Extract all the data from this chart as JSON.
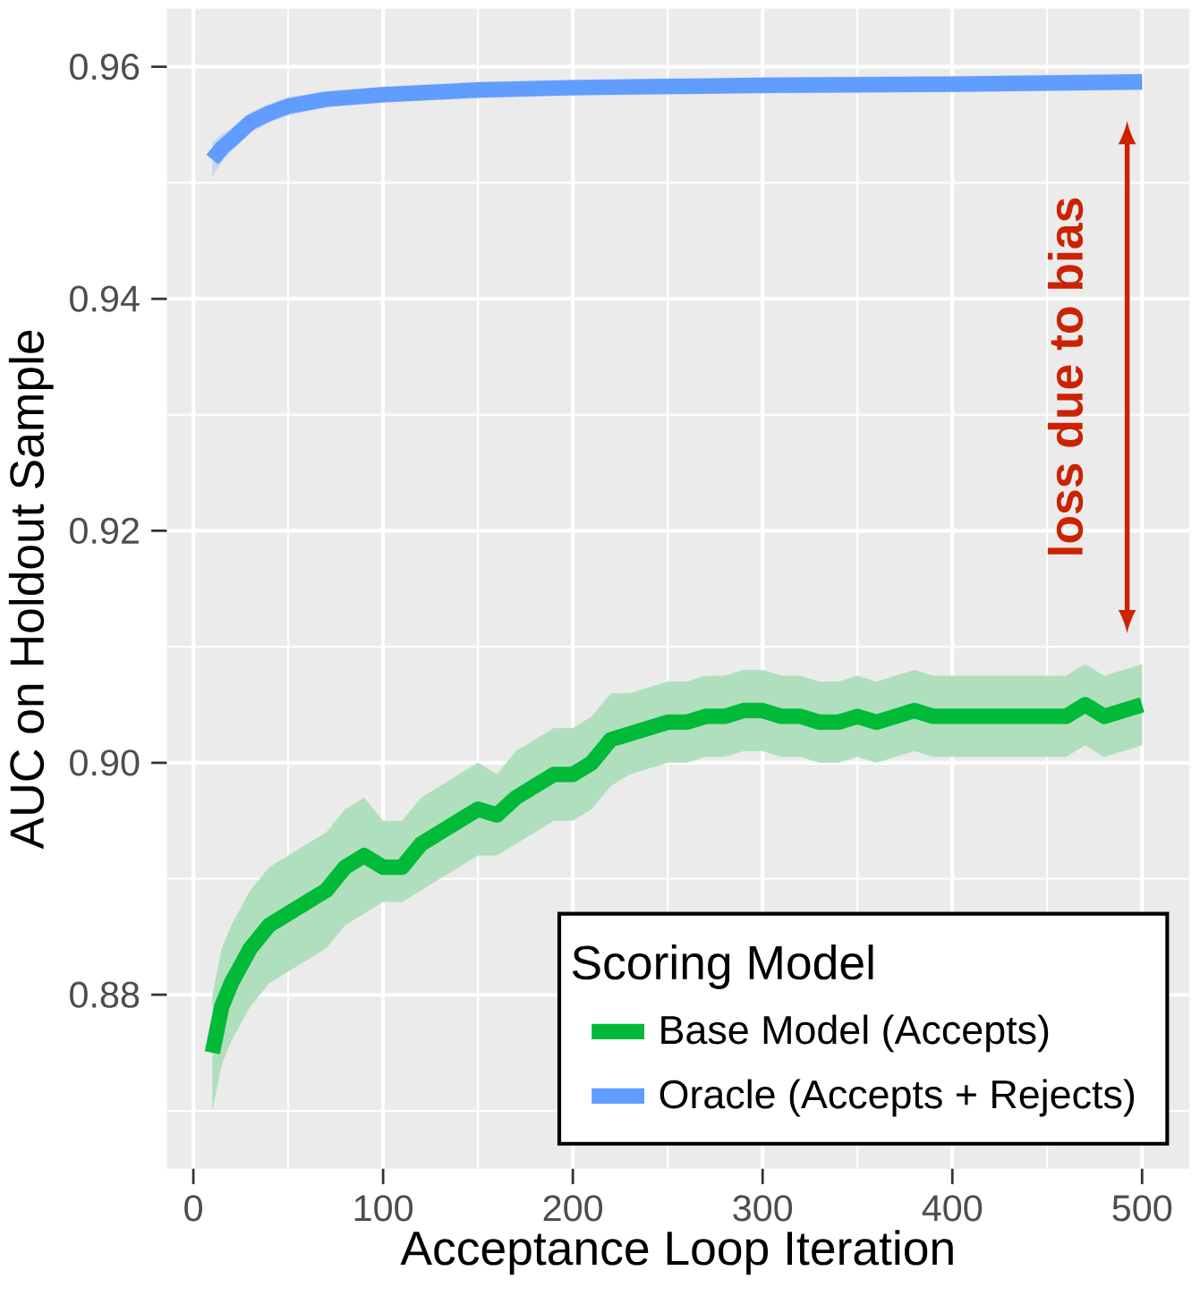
{
  "chart_data": {
    "type": "line",
    "xlabel": "Acceptance Loop Iteration",
    "ylabel": "AUC on Holdout Sample",
    "legend_title": "Scoring Model",
    "xlim": [
      -14,
      525
    ],
    "ylim": [
      0.865,
      0.965
    ],
    "xticks": [
      0,
      100,
      200,
      300,
      400,
      500
    ],
    "yticks": [
      0.88,
      {
        "value": 0.9,
        "label": "0.90"
      },
      0.92,
      0.94,
      0.96
    ],
    "grid": true,
    "legend": "bottom right",
    "marker": "none",
    "line_style": "solid",
    "annotations": [
      "loss due to bias"
    ],
    "series": [
      {
        "name": "Base Model (Accepts)",
        "color": "#00ba38",
        "x": [
          10,
          15,
          20,
          30,
          40,
          50,
          60,
          70,
          80,
          90,
          100,
          110,
          120,
          130,
          140,
          150,
          160,
          170,
          180,
          190,
          200,
          210,
          220,
          230,
          240,
          250,
          260,
          270,
          280,
          290,
          300,
          310,
          320,
          330,
          340,
          350,
          360,
          370,
          380,
          390,
          400,
          420,
          440,
          460,
          470,
          480,
          490,
          500
        ],
        "values": [
          0.875,
          0.879,
          0.881,
          0.884,
          0.886,
          0.887,
          0.888,
          0.889,
          0.891,
          0.892,
          0.891,
          0.891,
          0.893,
          0.894,
          0.895,
          0.896,
          0.8955,
          0.897,
          0.898,
          0.899,
          0.899,
          0.9,
          0.902,
          0.9025,
          0.903,
          0.9035,
          0.9035,
          0.904,
          0.904,
          0.9045,
          0.9045,
          0.904,
          0.904,
          0.9035,
          0.9035,
          0.904,
          0.9035,
          0.904,
          0.9045,
          0.904,
          0.904,
          0.904,
          0.904,
          0.904,
          0.905,
          0.904,
          0.9045,
          0.905
        ],
        "lower": [
          0.87,
          0.874,
          0.876,
          0.879,
          0.881,
          0.882,
          0.883,
          0.884,
          0.886,
          0.887,
          0.888,
          0.888,
          0.889,
          0.89,
          0.891,
          0.892,
          0.892,
          0.893,
          0.894,
          0.895,
          0.895,
          0.896,
          0.898,
          0.899,
          0.8995,
          0.9,
          0.9,
          0.9005,
          0.9005,
          0.901,
          0.901,
          0.9005,
          0.9005,
          0.9,
          0.9,
          0.9005,
          0.9,
          0.9005,
          0.901,
          0.9005,
          0.9005,
          0.9005,
          0.9005,
          0.9005,
          0.9015,
          0.9005,
          0.901,
          0.9015
        ],
        "upper": [
          0.88,
          0.884,
          0.886,
          0.889,
          0.891,
          0.892,
          0.893,
          0.894,
          0.896,
          0.897,
          0.895,
          0.895,
          0.897,
          0.898,
          0.899,
          0.9,
          0.899,
          0.901,
          0.902,
          0.903,
          0.903,
          0.904,
          0.906,
          0.906,
          0.9065,
          0.907,
          0.907,
          0.9075,
          0.9075,
          0.908,
          0.908,
          0.9075,
          0.9075,
          0.907,
          0.907,
          0.9075,
          0.907,
          0.9075,
          0.908,
          0.9075,
          0.9075,
          0.9075,
          0.9075,
          0.9075,
          0.9085,
          0.9075,
          0.908,
          0.9085
        ]
      },
      {
        "name": "Oracle (Accepts + Rejects)",
        "color": "#619cff",
        "x": [
          10,
          15,
          20,
          30,
          40,
          50,
          70,
          100,
          150,
          200,
          300,
          400,
          500
        ],
        "values": [
          0.952,
          0.953,
          0.9537,
          0.9552,
          0.956,
          0.9566,
          0.9572,
          0.9576,
          0.958,
          0.9582,
          0.9584,
          0.9585,
          0.9587
        ],
        "lower": [
          0.9505,
          0.9518,
          0.9527,
          0.9543,
          0.9552,
          0.9558,
          0.9565,
          0.9569,
          0.9573,
          0.9575,
          0.9577,
          0.9578,
          0.958
        ],
        "upper": [
          0.9535,
          0.9542,
          0.9547,
          0.9561,
          0.9568,
          0.9574,
          0.9579,
          0.9583,
          0.9587,
          0.9589,
          0.9591,
          0.9592,
          0.9594
        ]
      }
    ]
  }
}
